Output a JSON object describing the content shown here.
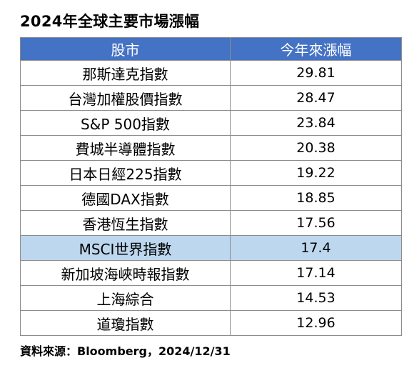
{
  "title": "2024年全球主要市場漲幅",
  "colors": {
    "header_bg": "#4472c4",
    "header_text": "#ffffff",
    "highlight_row_bg": "#bdd7ee",
    "row_bg": "#ffffff",
    "border": "#8c8c8c"
  },
  "chart_data": {
    "type": "table",
    "title": "2024年全球主要市場漲幅",
    "columns": [
      "股市",
      "今年來漲幅"
    ],
    "rows": [
      {
        "market": "那斯達克指數",
        "value": "29.81"
      },
      {
        "market": "台灣加權股價指數",
        "value": "28.47"
      },
      {
        "market": "S&P 500指數",
        "value": "23.84"
      },
      {
        "market": "費城半導體指數",
        "value": "20.38"
      },
      {
        "market": "日本日經225指數",
        "value": "19.22"
      },
      {
        "market": "德國DAX指數",
        "value": "18.85"
      },
      {
        "market": "香港恆生指數",
        "value": "17.56"
      },
      {
        "market": "MSCI世界指數",
        "value": "17.4",
        "highlighted": true
      },
      {
        "market": "新加坡海峽時報指數",
        "value": "17.14"
      },
      {
        "market": "上海綜合",
        "value": "14.53"
      },
      {
        "market": "道瓊指數",
        "value": "12.96"
      }
    ]
  },
  "source": "資料來源：Bloomberg，2024/12/31"
}
